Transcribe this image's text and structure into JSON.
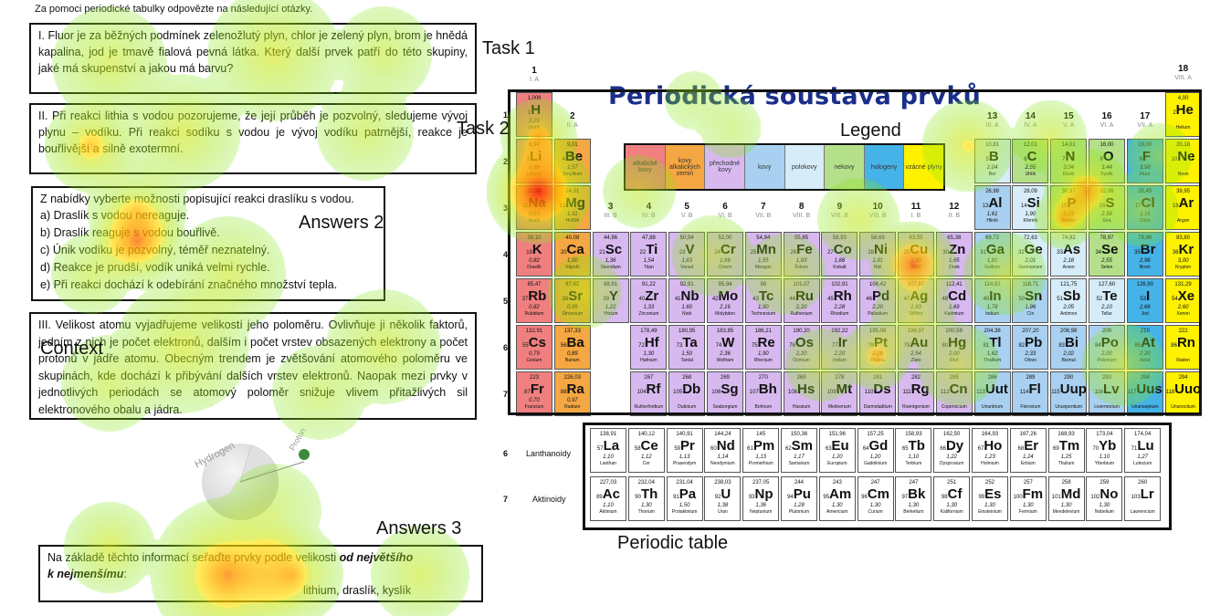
{
  "intro": "Za pomoci periodické tabulky odpovězte na následující otázky.",
  "task1": {
    "label": "Task 1",
    "text": "I.   Fluor je za běžných podmínek zelenožlutý plyn, chlor je zelený plyn, brom je hnědá kapalina, jod je tmavě fialová pevná látka. Který další prvek patří do této skupiny, jaké má skupenství a jakou má barvu?"
  },
  "task2": {
    "label": "Task 2",
    "text": "II.  Při reakci lithia s vodou pozorujeme, že její průběh je pozvolný, sledujeme vývoj plynu – vodíku. Při reakci sodíku s vodou je vývoj vodíku patrnější, reakce je bouřlivější a silně exotermní."
  },
  "answers2": {
    "label": "Answers 2",
    "title": "Z nabídky vyberte možnosti popisující reakci draslíku s vodou.",
    "options": [
      "a)  Draslík s vodou nereaguje.",
      "b)  Draslík reaguje s vodou bouřlivě.",
      "c)  Únik vodíku je pozvolný, téměř neznatelný.",
      "d)  Reakce je prudší, vodík uniká velmi rychle.",
      "e)  Při reakci dochází k odebírání značného množství tepla."
    ]
  },
  "context": {
    "label": "Context",
    "text": "III. Velikost atomu vyjadřujeme velikostí jeho poloměru. Ovlivňuje ji několik faktorů, jedním z nich je počet elektronů, dalším i počet vrstev obsazených elektrony a počet protonů v jádře atomu. Obecným trendem je zvětšování atomového poloměru ve skupinách, kde dochází k přibývání dalších vrstev elektronů. Naopak mezi prvky v jednotlivých periodách se atomový poloměr snižuje vlivem přitažlivých sil elektronového obalu a jádra."
  },
  "answers3": {
    "label": "Answers 3",
    "line1_a": "Na základě těchto informací seřaďte prvky podle velikosti ",
    "line1_b": "od největšího",
    "line2_a": "k nejmenšímu",
    "line2_b": ":",
    "line3": "lithium, draslík, kyslík"
  },
  "diagram": {
    "hydrogen": "Hydrogen",
    "proton": "Proton"
  },
  "periodic": {
    "title": "Periodická soustava prvků",
    "label_legend": "Legend",
    "label_table": "Periodic table",
    "legend": [
      "alkalické kovy",
      "kovy alkalických zemin",
      "přechodné kovy",
      "kovy",
      "polokovy",
      "nekovy",
      "halogeny",
      "vzácné plyny"
    ],
    "groups": [
      "1",
      "2",
      "3",
      "4",
      "5",
      "6",
      "7",
      "8",
      "9",
      "10",
      "11",
      "12",
      "13",
      "14",
      "15",
      "16",
      "17",
      "18"
    ],
    "group_sub": [
      "I. A",
      "II. A",
      "III. B",
      "IV. B",
      "V. B",
      "VI. B",
      "VII. B",
      "VIII. B",
      "VIII. B",
      "VIII. B",
      "I. B",
      "II. B",
      "III. A",
      "IV. A",
      "V. A",
      "VI. A",
      "VII. A",
      "VIII. A"
    ],
    "periods": [
      "1",
      "2",
      "3",
      "4",
      "5",
      "6",
      "7"
    ],
    "lanthanoids": "Lanthanoidy",
    "actinoids": "Aktinoidy",
    "row6": "6",
    "row7": "7"
  },
  "elements": [
    [
      "1",
      "H",
      "1,008",
      "2,20",
      "Vodík",
      1,
      1,
      "a"
    ],
    [
      "2",
      "He",
      "4,00",
      "",
      "Helium",
      18,
      1,
      "g"
    ],
    [
      "3",
      "Li",
      "6,94",
      "0,98",
      "Lithium",
      1,
      2,
      "a"
    ],
    [
      "4",
      "Be",
      "9,01",
      "1,57",
      "Beryllium",
      2,
      2,
      "e"
    ],
    [
      "5",
      "B",
      "10,81",
      "2,04",
      "Bor",
      13,
      2,
      "p"
    ],
    [
      "6",
      "C",
      "12,01",
      "2,55",
      "Uhlík",
      14,
      2,
      "n"
    ],
    [
      "7",
      "N",
      "14,01",
      "3,04",
      "Dusík",
      15,
      2,
      "n"
    ],
    [
      "8",
      "O",
      "16,00",
      "3,44",
      "Kyslík",
      16,
      2,
      "n"
    ],
    [
      "9",
      "F",
      "19,00",
      "3,98",
      "Fluor",
      17,
      2,
      "h"
    ],
    [
      "10",
      "Ne",
      "20,18",
      "",
      "Neon",
      18,
      2,
      "g"
    ],
    [
      "11",
      "Na",
      "22,99",
      "0,93",
      "Sodík",
      1,
      3,
      "a"
    ],
    [
      "12",
      "Mg",
      "24,31",
      "1,31",
      "Hořčík",
      2,
      3,
      "e"
    ],
    [
      "13",
      "Al",
      "26,98",
      "1,61",
      "Hliník",
      13,
      3,
      "m"
    ],
    [
      "14",
      "Si",
      "28,09",
      "1,90",
      "Křemík",
      14,
      3,
      "p"
    ],
    [
      "15",
      "P",
      "30,97",
      "2,19",
      "Fosfor",
      15,
      3,
      "n"
    ],
    [
      "16",
      "S",
      "32,06",
      "2,58",
      "Síra",
      16,
      3,
      "n"
    ],
    [
      "17",
      "Cl",
      "35,45",
      "3,16",
      "Chlor",
      17,
      3,
      "h"
    ],
    [
      "18",
      "Ar",
      "39,95",
      "",
      "Argon",
      18,
      3,
      "g"
    ],
    [
      "19",
      "K",
      "39,10",
      "0,82",
      "Draslík",
      1,
      4,
      "a"
    ],
    [
      "20",
      "Ca",
      "40,08",
      "1,00",
      "Vápník",
      2,
      4,
      "e"
    ],
    [
      "21",
      "Sc",
      "44,96",
      "1,36",
      "Skandium",
      3,
      4,
      "t"
    ],
    [
      "22",
      "Ti",
      "47,88",
      "1,54",
      "Titan",
      4,
      4,
      "t"
    ],
    [
      "23",
      "V",
      "50,94",
      "1,63",
      "Vanad",
      5,
      4,
      "t"
    ],
    [
      "24",
      "Cr",
      "52,00",
      "1,66",
      "Chrom",
      6,
      4,
      "t"
    ],
    [
      "25",
      "Mn",
      "54,94",
      "1,55",
      "Mangan",
      7,
      4,
      "t"
    ],
    [
      "26",
      "Fe",
      "55,85",
      "1,83",
      "Železo",
      8,
      4,
      "t"
    ],
    [
      "27",
      "Co",
      "58,93",
      "1,88",
      "Kobalt",
      9,
      4,
      "t"
    ],
    [
      "28",
      "Ni",
      "58,69",
      "1,91",
      "Nikl",
      10,
      4,
      "t"
    ],
    [
      "29",
      "Cu",
      "63,55",
      "1,90",
      "Měď",
      11,
      4,
      "t"
    ],
    [
      "30",
      "Zn",
      "65,38",
      "1,65",
      "Zinek",
      12,
      4,
      "t"
    ],
    [
      "31",
      "Ga",
      "69,72",
      "1,81",
      "Gallium",
      13,
      4,
      "m"
    ],
    [
      "32",
      "Ge",
      "72,63",
      "2,01",
      "Germanium",
      14,
      4,
      "p"
    ],
    [
      "33",
      "As",
      "74,92",
      "2,18",
      "Arsen",
      15,
      4,
      "p"
    ],
    [
      "34",
      "Se",
      "78,97",
      "2,55",
      "Selen",
      16,
      4,
      "n"
    ],
    [
      "35",
      "Br",
      "79,90",
      "2,96",
      "Brom",
      17,
      4,
      "h"
    ],
    [
      "36",
      "Kr",
      "83,80",
      "3,00",
      "Krypton",
      18,
      4,
      "g"
    ],
    [
      "37",
      "Rb",
      "85,47",
      "0,82",
      "Rubidium",
      1,
      5,
      "a"
    ],
    [
      "38",
      "Sr",
      "87,62",
      "0,95",
      "Stroncium",
      2,
      5,
      "e"
    ],
    [
      "39",
      "Y",
      "88,91",
      "1,22",
      "Yttrium",
      3,
      5,
      "t"
    ],
    [
      "40",
      "Zr",
      "91,22",
      "1,33",
      "Zirconium",
      4,
      5,
      "t"
    ],
    [
      "41",
      "Nb",
      "92,91",
      "1,60",
      "Niob",
      5,
      5,
      "t"
    ],
    [
      "42",
      "Mo",
      "95,94",
      "2,16",
      "Molybden",
      6,
      5,
      "t"
    ],
    [
      "43",
      "Tc",
      "98",
      "1,90",
      "Technecium",
      7,
      5,
      "t"
    ],
    [
      "44",
      "Ru",
      "101,07",
      "2,20",
      "Ruthenium",
      8,
      5,
      "t"
    ],
    [
      "45",
      "Rh",
      "102,91",
      "2,28",
      "Rhodium",
      9,
      5,
      "t"
    ],
    [
      "46",
      "Pd",
      "106,42",
      "2,20",
      "Palladium",
      10,
      5,
      "t"
    ],
    [
      "47",
      "Ag",
      "107,87",
      "1,93",
      "Stříbro",
      11,
      5,
      "t"
    ],
    [
      "48",
      "Cd",
      "112,41",
      "1,69",
      "Kadmium",
      12,
      5,
      "t"
    ],
    [
      "49",
      "In",
      "114,82",
      "1,78",
      "Indium",
      13,
      5,
      "m"
    ],
    [
      "50",
      "Sn",
      "118,71",
      "1,96",
      "Cín",
      14,
      5,
      "m"
    ],
    [
      "51",
      "Sb",
      "121,75",
      "2,05",
      "Antimon",
      15,
      5,
      "p"
    ],
    [
      "52",
      "Te",
      "127,60",
      "2,10",
      "Tellur",
      16,
      5,
      "p"
    ],
    [
      "53",
      "I",
      "126,90",
      "2,66",
      "Jod",
      17,
      5,
      "h"
    ],
    [
      "54",
      "Xe",
      "131,29",
      "2,60",
      "Xenon",
      18,
      5,
      "g"
    ],
    [
      "55",
      "Cs",
      "132,91",
      "0,79",
      "Cesium",
      1,
      6,
      "a"
    ],
    [
      "56",
      "Ba",
      "137,33",
      "0,89",
      "Barium",
      2,
      6,
      "e"
    ],
    [
      "72",
      "Hf",
      "178,49",
      "1,30",
      "Hafnium",
      4,
      6,
      "t"
    ],
    [
      "73",
      "Ta",
      "180,95",
      "1,50",
      "Tantal",
      5,
      6,
      "t"
    ],
    [
      "74",
      "W",
      "183,85",
      "2,36",
      "Wolfram",
      6,
      6,
      "t"
    ],
    [
      "75",
      "Re",
      "186,21",
      "1,90",
      "Rhenium",
      7,
      6,
      "t"
    ],
    [
      "76",
      "Os",
      "190,20",
      "2,20",
      "Osmium",
      8,
      6,
      "t"
    ],
    [
      "77",
      "Ir",
      "192,22",
      "2,20",
      "Iridium",
      9,
      6,
      "t"
    ],
    [
      "78",
      "Pt",
      "195,08",
      "2,28",
      "Platina",
      10,
      6,
      "t"
    ],
    [
      "79",
      "Au",
      "196,97",
      "2,54",
      "Zlato",
      11,
      6,
      "t"
    ],
    [
      "80",
      "Hg",
      "200,59",
      "2,00",
      "Rtuť",
      12,
      6,
      "t"
    ],
    [
      "81",
      "Tl",
      "204,38",
      "1,62",
      "Thallium",
      13,
      6,
      "m"
    ],
    [
      "82",
      "Pb",
      "207,20",
      "2,33",
      "Olovo",
      14,
      6,
      "m"
    ],
    [
      "83",
      "Bi",
      "208,98",
      "2,02",
      "Bismut",
      15,
      6,
      "m"
    ],
    [
      "84",
      "Po",
      "209",
      "2,00",
      "Polonium",
      16,
      6,
      "m"
    ],
    [
      "85",
      "At",
      "210",
      "2,20",
      "Astat",
      17,
      6,
      "h"
    ],
    [
      "86",
      "Rn",
      "222",
      "",
      "Radon",
      18,
      6,
      "g"
    ],
    [
      "87",
      "Fr",
      "223",
      "0,70",
      "Francium",
      1,
      7,
      "a"
    ],
    [
      "88",
      "Ra",
      "226,03",
      "0,97",
      "Radium",
      2,
      7,
      "e"
    ],
    [
      "104",
      "Rf",
      "267",
      "",
      "Rutherfordium",
      4,
      7,
      "t"
    ],
    [
      "105",
      "Db",
      "268",
      "",
      "Dubnium",
      5,
      7,
      "t"
    ],
    [
      "106",
      "Sg",
      "269",
      "",
      "Seaborgium",
      6,
      7,
      "t"
    ],
    [
      "107",
      "Bh",
      "270",
      "",
      "Bohrium",
      7,
      7,
      "t"
    ],
    [
      "108",
      "Hs",
      "269",
      "",
      "Hassium",
      8,
      7,
      "t"
    ],
    [
      "109",
      "Mt",
      "278",
      "",
      "Meitnerium",
      9,
      7,
      "t"
    ],
    [
      "110",
      "Ds",
      "281",
      "",
      "Darmstadtium",
      10,
      7,
      "t"
    ],
    [
      "111",
      "Rg",
      "282",
      "",
      "Roentgenium",
      11,
      7,
      "t"
    ],
    [
      "112",
      "Cn",
      "285",
      "",
      "Copernicium",
      12,
      7,
      "t"
    ],
    [
      "113",
      "Uut",
      "286",
      "",
      "Ununtrium",
      13,
      7,
      "m"
    ],
    [
      "114",
      "Fl",
      "289",
      "",
      "Flerovium",
      14,
      7,
      "m"
    ],
    [
      "115",
      "Uup",
      "290",
      "",
      "Ununpentium",
      15,
      7,
      "m"
    ],
    [
      "116",
      "Lv",
      "293",
      "",
      "Livermorium",
      16,
      7,
      "m"
    ],
    [
      "117",
      "Uus",
      "294",
      "",
      "Ununseptium",
      17,
      7,
      "h"
    ],
    [
      "118",
      "Uuo",
      "294",
      "",
      "Ununoctium",
      18,
      7,
      "g"
    ]
  ],
  "lanth": [
    [
      "57",
      "La",
      "138,91",
      "1,10",
      "Lanthan"
    ],
    [
      "58",
      "Ce",
      "140,12",
      "1,12",
      "Cer"
    ],
    [
      "59",
      "Pr",
      "140,91",
      "1,13",
      "Praseodym"
    ],
    [
      "60",
      "Nd",
      "144,24",
      "1,14",
      "Neodymium"
    ],
    [
      "61",
      "Pm",
      "145",
      "1,13",
      "Promethium"
    ],
    [
      "62",
      "Sm",
      "150,36",
      "1,17",
      "Samarium"
    ],
    [
      "63",
      "Eu",
      "151,96",
      "1,20",
      "Europium"
    ],
    [
      "64",
      "Gd",
      "157,25",
      "1,20",
      "Gadolinium"
    ],
    [
      "65",
      "Tb",
      "158,93",
      "1,10",
      "Terbium"
    ],
    [
      "66",
      "Dy",
      "162,50",
      "1,22",
      "Dysprosium"
    ],
    [
      "67",
      "Ho",
      "164,93",
      "1,23",
      "Holmium"
    ],
    [
      "68",
      "Er",
      "167,26",
      "1,24",
      "Erbium"
    ],
    [
      "69",
      "Tm",
      "168,93",
      "1,25",
      "Thulium"
    ],
    [
      "70",
      "Yb",
      "173,04",
      "1,10",
      "Ytterbium"
    ],
    [
      "71",
      "Lu",
      "174,04",
      "1,27",
      "Lutecium"
    ]
  ],
  "actin": [
    [
      "89",
      "Ac",
      "227,03",
      "1,10",
      "Aktinium"
    ],
    [
      "90",
      "Th",
      "232,04",
      "1,30",
      "Thorium"
    ],
    [
      "91",
      "Pa",
      "231,04",
      "1,50",
      "Protaktinium"
    ],
    [
      "92",
      "U",
      "238,03",
      "1,38",
      "Uran"
    ],
    [
      "93",
      "Np",
      "237,05",
      "1,36",
      "Neptunium"
    ],
    [
      "94",
      "Pu",
      "244",
      "1,28",
      "Plutonium"
    ],
    [
      "95",
      "Am",
      "243",
      "1,30",
      "Americium"
    ],
    [
      "96",
      "Cm",
      "247",
      "1,30",
      "Curium"
    ],
    [
      "97",
      "Bk",
      "247",
      "1,30",
      "Berkelium"
    ],
    [
      "98",
      "Cf",
      "251",
      "1,30",
      "Kalifornium"
    ],
    [
      "99",
      "Es",
      "252",
      "1,30",
      "Einsteinium"
    ],
    [
      "100",
      "Fm",
      "257",
      "1,30",
      "Fermium"
    ],
    [
      "101",
      "Md",
      "258",
      "1,30",
      "Mendelevium"
    ],
    [
      "102",
      "No",
      "259",
      "1,30",
      "Nobelium"
    ],
    [
      "103",
      "Lr",
      "260",
      "",
      "Lawrencium"
    ]
  ],
  "colors": {
    "a": "#f08080",
    "e": "#f4a742",
    "t": "#d7b9ef",
    "m": "#a9d0f0",
    "p": "#d6ecf8",
    "n": "#b5e08a",
    "h": "#45b2e8",
    "g": "#fff200",
    "f": "#ffffff"
  }
}
